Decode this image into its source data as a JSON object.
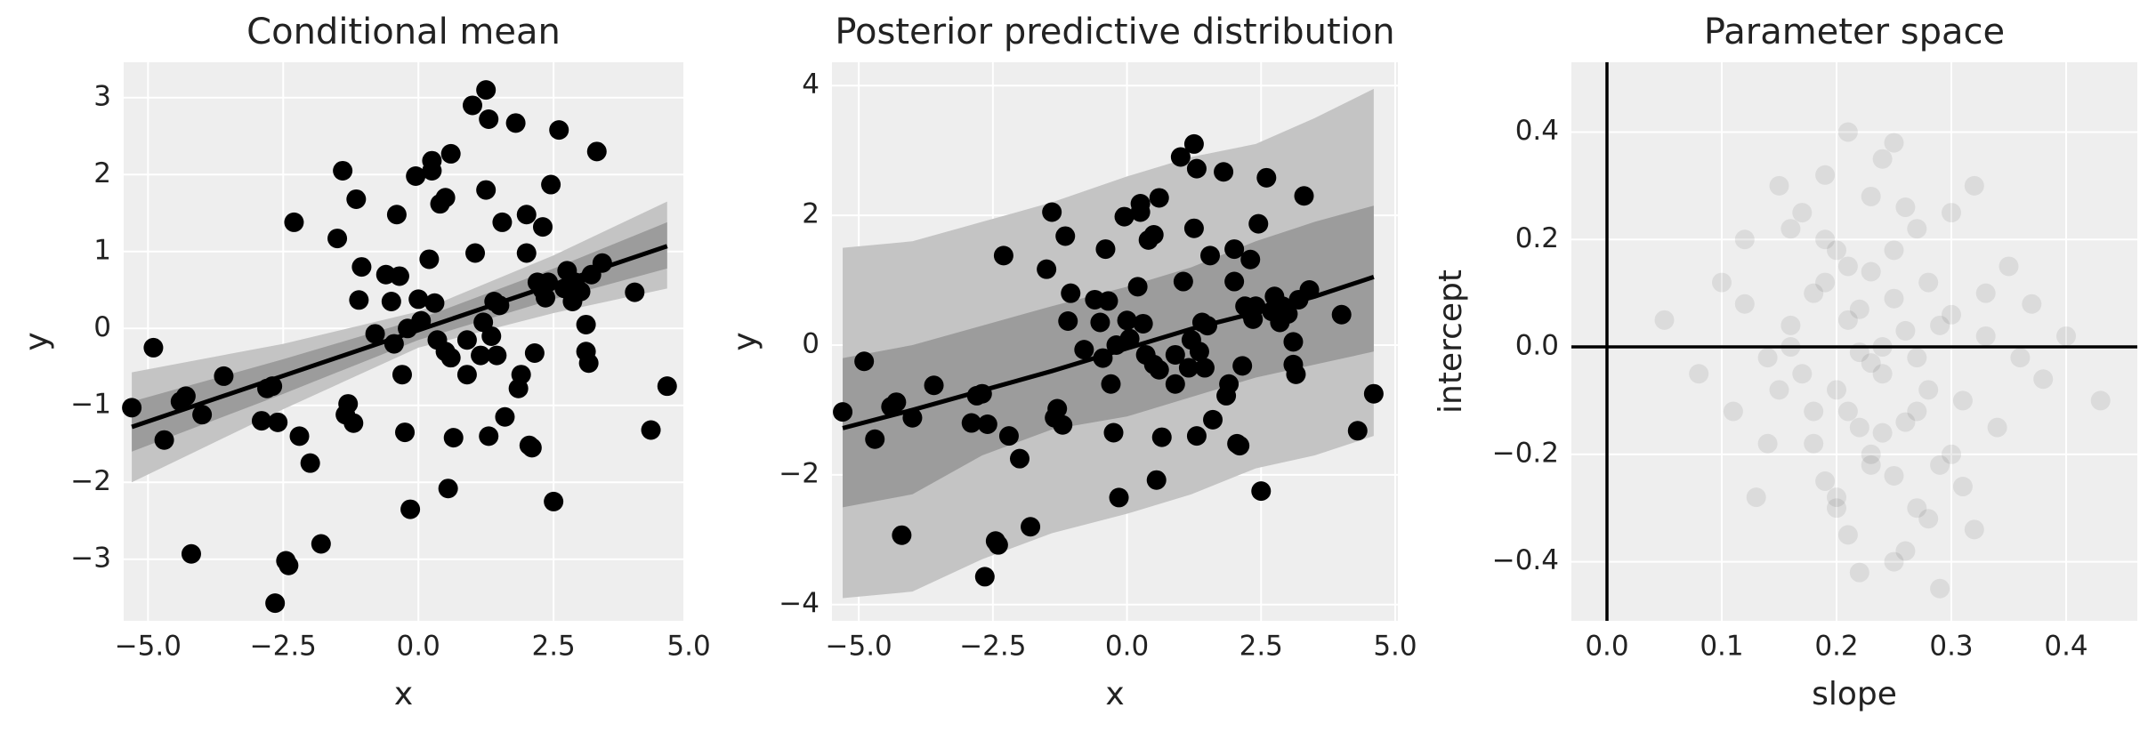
{
  "chart_data": [
    {
      "type": "scatter_band",
      "title": "Conditional mean",
      "x_label": "x",
      "y_label": "y",
      "xlim": [
        -5.45,
        4.9
      ],
      "ylim": [
        -3.8,
        3.46
      ],
      "xticks": [
        {
          "value": -5,
          "label": "−5.0"
        },
        {
          "value": -2.5,
          "label": "−2.5"
        },
        {
          "value": 0,
          "label": "0.0"
        },
        {
          "value": 2.5,
          "label": "2.5"
        },
        {
          "value": 5,
          "label": "5.0"
        }
      ],
      "yticks": [
        {
          "value": -3,
          "label": "−3"
        },
        {
          "value": -2,
          "label": "−2"
        },
        {
          "value": -1,
          "label": "−1"
        },
        0,
        1,
        2,
        3
      ],
      "grid": true,
      "bands": [
        {
          "x": [
            -5.3,
            -2.5,
            0,
            2.5,
            4.6
          ],
          "lower": [
            -2.0,
            -1.05,
            -0.25,
            0.2,
            0.52
          ],
          "upper": [
            -0.57,
            -0.2,
            0.22,
            0.95,
            1.65
          ],
          "color": "#c4c4c4"
        },
        {
          "x": [
            -5.3,
            -2.5,
            0,
            2.5,
            4.6
          ],
          "lower": [
            -1.6,
            -0.85,
            -0.15,
            0.38,
            0.78
          ],
          "upper": [
            -0.95,
            -0.4,
            0.12,
            0.78,
            1.38
          ],
          "color": "#9c9c9c"
        }
      ],
      "line": {
        "x": [
          -5.3,
          4.6
        ],
        "values": [
          -1.28,
          1.07
        ],
        "color": "#000000"
      },
      "points": {
        "color": "#000000",
        "x": [
          -5.3,
          -4.9,
          -4.7,
          -4.4,
          -4.3,
          -4.2,
          -4.0,
          -3.6,
          -2.9,
          -2.8,
          -2.7,
          -2.65,
          -2.6,
          -2.45,
          -2.4,
          -2.3,
          -2.2,
          -2.0,
          -1.8,
          -1.5,
          -1.4,
          -1.35,
          -1.3,
          -1.2,
          -1.15,
          -1.1,
          -1.05,
          -0.8,
          -0.6,
          -0.5,
          -0.45,
          -0.4,
          -0.35,
          -0.3,
          -0.25,
          -0.2,
          -0.15,
          -0.05,
          0.0,
          0.05,
          0.2,
          0.25,
          0.25,
          0.3,
          0.35,
          0.4,
          0.5,
          0.5,
          0.55,
          0.6,
          0.6,
          0.65,
          0.9,
          0.9,
          1.0,
          1.05,
          1.15,
          1.2,
          1.25,
          1.25,
          1.3,
          1.3,
          1.35,
          1.4,
          1.45,
          1.5,
          1.55,
          1.6,
          1.8,
          1.85,
          1.9,
          2.0,
          2.0,
          2.05,
          2.1,
          2.15,
          2.2,
          2.3,
          2.3,
          2.35,
          2.4,
          2.45,
          2.5,
          2.6,
          2.7,
          2.75,
          2.85,
          2.9,
          3.0,
          3.1,
          3.1,
          3.15,
          3.2,
          3.3,
          3.4,
          4.0,
          4.3,
          4.6
        ],
        "y": [
          -1.03,
          -0.25,
          -1.45,
          -0.95,
          -0.88,
          -2.93,
          -1.12,
          -0.62,
          -1.2,
          -0.78,
          -0.75,
          -3.57,
          -1.22,
          -3.02,
          -3.08,
          1.38,
          -1.4,
          -1.75,
          -2.8,
          1.17,
          2.05,
          -1.12,
          -0.98,
          -1.23,
          1.68,
          0.37,
          0.8,
          -0.07,
          0.7,
          0.35,
          -0.2,
          1.48,
          0.68,
          -0.6,
          -1.35,
          0.0,
          -2.35,
          1.98,
          0.38,
          0.1,
          0.9,
          2.18,
          2.05,
          0.33,
          -0.15,
          1.62,
          1.7,
          -0.3,
          -2.08,
          -0.38,
          2.27,
          -1.42,
          -0.15,
          -0.6,
          2.9,
          0.98,
          -0.35,
          0.08,
          1.8,
          3.1,
          2.72,
          -1.4,
          -0.1,
          0.35,
          -0.35,
          0.3,
          1.38,
          -1.15,
          2.67,
          -0.78,
          -0.6,
          0.98,
          1.48,
          -1.52,
          -1.55,
          -0.32,
          0.6,
          0.5,
          1.32,
          0.4,
          0.6,
          1.87,
          -2.25,
          2.58,
          0.52,
          0.75,
          0.35,
          0.6,
          0.48,
          0.05,
          -0.3,
          -0.45,
          0.7,
          2.3,
          0.85,
          0.47,
          -1.32,
          -0.75
        ]
      }
    },
    {
      "type": "scatter_band",
      "title": "Posterior predictive distribution",
      "x_label": "x",
      "y_label": "y",
      "xlim": [
        -5.5,
        5.05
      ],
      "ylim": [
        -4.25,
        4.36
      ],
      "xticks": [
        {
          "value": -5,
          "label": "−5.0"
        },
        {
          "value": -2.5,
          "label": "−2.5"
        },
        {
          "value": 0,
          "label": "0.0"
        },
        {
          "value": 2.5,
          "label": "2.5"
        },
        {
          "value": 5,
          "label": "5.0"
        }
      ],
      "yticks": [
        {
          "value": -4,
          "label": "−4"
        },
        {
          "value": -2,
          "label": "−2"
        },
        0,
        2,
        4
      ],
      "grid": true,
      "bands": [
        {
          "x": [
            -5.3,
            -4,
            -2.7,
            -1.4,
            0,
            1.2,
            2.4,
            3.5,
            4.6
          ],
          "lower": [
            -3.9,
            -3.8,
            -3.3,
            -2.9,
            -2.6,
            -2.3,
            -1.9,
            -1.7,
            -1.4
          ],
          "upper": [
            1.5,
            1.6,
            1.9,
            2.2,
            2.6,
            2.9,
            3.1,
            3.5,
            3.95
          ],
          "color": "#c4c4c4"
        },
        {
          "x": [
            -5.3,
            -4,
            -2.7,
            -1.4,
            0,
            1.2,
            2.4,
            3.5,
            4.6
          ],
          "lower": [
            -2.5,
            -2.3,
            -1.7,
            -1.3,
            -1.1,
            -0.8,
            -0.5,
            -0.3,
            -0.1
          ],
          "upper": [
            -0.2,
            0.0,
            0.3,
            0.6,
            0.9,
            1.2,
            1.6,
            1.9,
            2.15
          ],
          "color": "#9c9c9c"
        }
      ],
      "line": {
        "x": [
          -5.3,
          -4,
          -2.7,
          -1.4,
          0,
          1.2,
          2.4,
          3.5,
          4.6
        ],
        "values": [
          -1.28,
          -1.0,
          -0.7,
          -0.4,
          -0.05,
          0.25,
          0.5,
          0.75,
          1.05
        ],
        "color": "#000000"
      },
      "points": {
        "color": "#000000",
        "x": [
          -5.3,
          -4.9,
          -4.7,
          -4.4,
          -4.3,
          -4.2,
          -4.0,
          -3.6,
          -2.9,
          -2.8,
          -2.7,
          -2.65,
          -2.6,
          -2.45,
          -2.4,
          -2.3,
          -2.2,
          -2.0,
          -1.8,
          -1.5,
          -1.4,
          -1.35,
          -1.3,
          -1.2,
          -1.15,
          -1.1,
          -1.05,
          -0.8,
          -0.6,
          -0.5,
          -0.45,
          -0.4,
          -0.35,
          -0.3,
          -0.25,
          -0.2,
          -0.15,
          -0.05,
          0.0,
          0.05,
          0.2,
          0.25,
          0.25,
          0.3,
          0.35,
          0.4,
          0.5,
          0.5,
          0.55,
          0.6,
          0.6,
          0.65,
          0.9,
          0.9,
          1.0,
          1.05,
          1.15,
          1.2,
          1.25,
          1.25,
          1.3,
          1.3,
          1.35,
          1.4,
          1.45,
          1.5,
          1.55,
          1.6,
          1.8,
          1.85,
          1.9,
          2.0,
          2.0,
          2.05,
          2.1,
          2.15,
          2.2,
          2.3,
          2.3,
          2.35,
          2.4,
          2.45,
          2.5,
          2.6,
          2.7,
          2.75,
          2.85,
          2.9,
          3.0,
          3.1,
          3.1,
          3.15,
          3.2,
          3.3,
          3.4,
          4.0,
          4.3,
          4.6
        ],
        "y": [
          -1.03,
          -0.25,
          -1.45,
          -0.95,
          -0.88,
          -2.93,
          -1.12,
          -0.62,
          -1.2,
          -0.78,
          -0.75,
          -3.57,
          -1.22,
          -3.02,
          -3.08,
          1.38,
          -1.4,
          -1.75,
          -2.8,
          1.17,
          2.05,
          -1.12,
          -0.98,
          -1.23,
          1.68,
          0.37,
          0.8,
          -0.07,
          0.7,
          0.35,
          -0.2,
          1.48,
          0.68,
          -0.6,
          -1.35,
          0.0,
          -2.35,
          1.98,
          0.38,
          0.1,
          0.9,
          2.18,
          2.05,
          0.33,
          -0.15,
          1.62,
          1.7,
          -0.3,
          -2.08,
          -0.38,
          2.27,
          -1.42,
          -0.15,
          -0.6,
          2.9,
          0.98,
          -0.35,
          0.08,
          1.8,
          3.1,
          2.72,
          -1.4,
          -0.1,
          0.35,
          -0.35,
          0.3,
          1.38,
          -1.15,
          2.67,
          -0.78,
          -0.6,
          0.98,
          1.48,
          -1.52,
          -1.55,
          -0.32,
          0.6,
          0.5,
          1.32,
          0.4,
          0.6,
          1.87,
          -2.25,
          2.58,
          0.52,
          0.75,
          0.35,
          0.6,
          0.48,
          0.05,
          -0.3,
          -0.45,
          0.7,
          2.3,
          0.85,
          0.47,
          -1.32,
          -0.75
        ]
      }
    },
    {
      "type": "scatter_band",
      "title": "Parameter space",
      "x_label": "slope",
      "y_label": "intercept",
      "xlim": [
        -0.031,
        0.462
      ],
      "ylim": [
        -0.51,
        0.53
      ],
      "xticks": [
        {
          "value": 0,
          "label": "0.0"
        },
        0.1,
        0.2,
        0.3,
        0.4
      ],
      "yticks": [
        {
          "value": -0.4,
          "label": "−0.4"
        },
        {
          "value": -0.2,
          "label": "−0.2"
        },
        {
          "value": 0,
          "label": "0.0"
        },
        0.2,
        0.4
      ],
      "grid": true,
      "axvline": 0,
      "axhline": 0,
      "opacity": 0.08,
      "points": {
        "color": "#000000",
        "x": [
          0.23,
          0.18,
          0.27,
          0.21,
          0.3,
          0.15,
          0.25,
          0.19,
          0.33,
          0.22,
          0.12,
          0.28,
          0.24,
          0.17,
          0.31,
          0.2,
          0.26,
          0.14,
          0.35,
          0.23,
          0.29,
          0.16,
          0.21,
          0.38,
          0.1,
          0.25,
          0.19,
          0.27,
          0.32,
          0.22,
          0.13,
          0.24,
          0.3,
          0.18,
          0.26,
          0.4,
          0.08,
          0.21,
          0.28,
          0.23,
          0.34,
          0.16,
          0.2,
          0.25,
          0.31,
          0.19,
          0.27,
          0.11,
          0.36,
          0.22,
          0.24,
          0.17,
          0.29,
          0.21,
          0.26,
          0.33,
          0.15,
          0.23,
          0.43,
          0.05,
          0.2,
          0.28,
          0.18,
          0.25,
          0.3,
          0.22,
          0.14,
          0.27,
          0.37,
          0.19,
          0.24,
          0.21,
          0.32,
          0.16,
          0.26,
          0.23,
          0.29,
          0.12,
          0.2,
          0.25
        ],
        "y": [
          -0.03,
          0.1,
          -0.12,
          0.05,
          -0.2,
          -0.08,
          0.18,
          -0.25,
          0.02,
          -0.15,
          0.08,
          0.12,
          -0.05,
          0.25,
          -0.1,
          -0.3,
          0.03,
          -0.18,
          0.15,
          0.28,
          -0.22,
          0.0,
          -0.35,
          -0.06,
          0.12,
          -0.4,
          0.2,
          -0.02,
          0.3,
          0.07,
          -0.28,
          0.35,
          0.06,
          -0.12,
          -0.14,
          0.02,
          -0.05,
          0.15,
          -0.32,
          -0.2,
          -0.15,
          0.22,
          -0.08,
          0.09,
          -0.26,
          0.32,
          0.22,
          -0.12,
          -0.02,
          -0.42,
          -0.16,
          -0.05,
          0.04,
          0.4,
          -0.38,
          0.1,
          0.3,
          0.14,
          -0.1,
          0.05,
          0.18,
          -0.08,
          -0.18,
          -0.24,
          0.25,
          -0.01,
          -0.02,
          -0.3,
          0.08,
          0.12,
          0.0,
          -0.12,
          -0.34,
          0.04,
          0.26,
          -0.22,
          -0.45,
          0.2,
          -0.28,
          0.38
        ]
      }
    }
  ]
}
